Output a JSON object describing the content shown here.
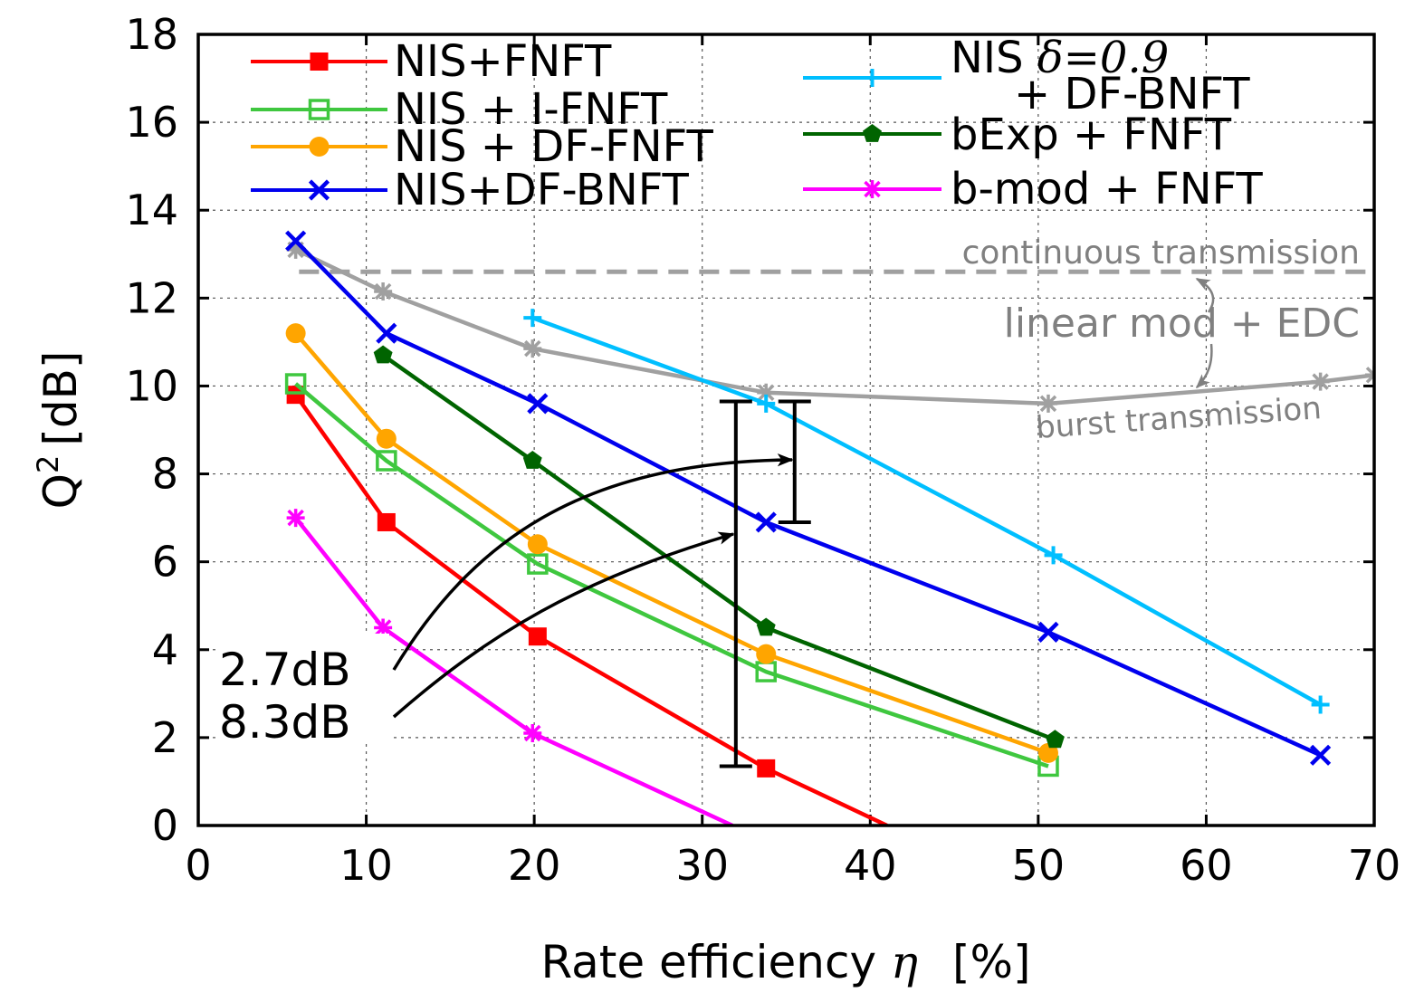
{
  "chart_data": {
    "type": "line",
    "title": "",
    "xlabel": "Rate efficiency",
    "xlabel_symbol": "η",
    "xlabel_unit": "[%]",
    "ylabel": "Q",
    "ylabel_sup": "2",
    "ylabel_unit": "[dB]",
    "xlim": [
      0,
      70
    ],
    "ylim": [
      0,
      18
    ],
    "xticks": [
      "0",
      "10",
      "20",
      "30",
      "40",
      "50",
      "60",
      "70"
    ],
    "yticks": [
      "0",
      "2",
      "4",
      "6",
      "8",
      "10",
      "12",
      "14",
      "16",
      "18"
    ],
    "grid": true,
    "legend_position": "top",
    "series": [
      {
        "name": "NIS+FNFT",
        "color": "#ff0000",
        "marker": "filled-square",
        "x": [
          5.8,
          11.2,
          20.2,
          33.8,
          41.0
        ],
        "y": [
          9.8,
          6.9,
          4.3,
          1.3,
          0.0
        ]
      },
      {
        "name": "NIS + I-FNFT",
        "color": "#3fc73f",
        "marker": "open-square",
        "x": [
          5.8,
          11.2,
          20.2,
          33.8,
          50.6
        ],
        "y": [
          10.05,
          8.3,
          5.95,
          3.5,
          1.35
        ]
      },
      {
        "name": "NIS + DF-FNFT",
        "color": "#ffa500",
        "marker": "filled-circle",
        "x": [
          5.8,
          11.2,
          20.2,
          33.8,
          50.6
        ],
        "y": [
          11.2,
          8.8,
          6.4,
          3.9,
          1.65
        ]
      },
      {
        "name": "NIS+DF-BNFT",
        "color": "#0000ee",
        "marker": "x",
        "x": [
          5.8,
          11.2,
          20.2,
          33.8,
          50.6,
          66.8
        ],
        "y": [
          13.3,
          11.2,
          9.6,
          6.9,
          4.4,
          1.6
        ]
      },
      {
        "name": "NIS",
        "name_delta": "δ=0.9",
        "name_cont": "+ DF-BNFT",
        "color": "#00bfff",
        "marker": "plus",
        "x": [
          19.9,
          33.8,
          50.9,
          66.8
        ],
        "y": [
          11.55,
          9.6,
          6.15,
          2.75
        ]
      },
      {
        "name": "bExp + FNFT",
        "color": "#006400",
        "marker": "filled-pentagon",
        "x": [
          11.0,
          19.9,
          33.8,
          51.0
        ],
        "y": [
          10.7,
          8.3,
          4.5,
          1.95
        ]
      },
      {
        "name": "b-mod + FNFT",
        "color": "#ff00ff",
        "marker": "asterisk",
        "x": [
          5.8,
          11.0,
          19.9,
          31.8
        ],
        "y": [
          7.0,
          4.5,
          2.1,
          0.0
        ]
      },
      {
        "name": "linear mod + EDC (burst)",
        "color": "#a0a0a0",
        "marker": "asterisk",
        "x": [
          5.8,
          11.0,
          19.9,
          33.8,
          50.6,
          66.8,
          70.0
        ],
        "y": [
          13.1,
          12.15,
          10.85,
          9.85,
          9.6,
          10.1,
          10.25
        ]
      }
    ],
    "reference_line": {
      "label": "continuous transmission",
      "y": 12.6,
      "x_start": 6.0,
      "color": "#a0a0a0"
    },
    "annotations": {
      "group_label": "linear mod + EDC",
      "burst_label": "burst transmission",
      "gap_small": "2.7dB",
      "gap_large": "8.3dB",
      "errorbar_small": {
        "x": 35.5,
        "y_low": 6.9,
        "y_high": 9.65
      },
      "errorbar_large": {
        "x": 32.0,
        "y_low": 1.35,
        "y_high": 9.65
      }
    }
  }
}
